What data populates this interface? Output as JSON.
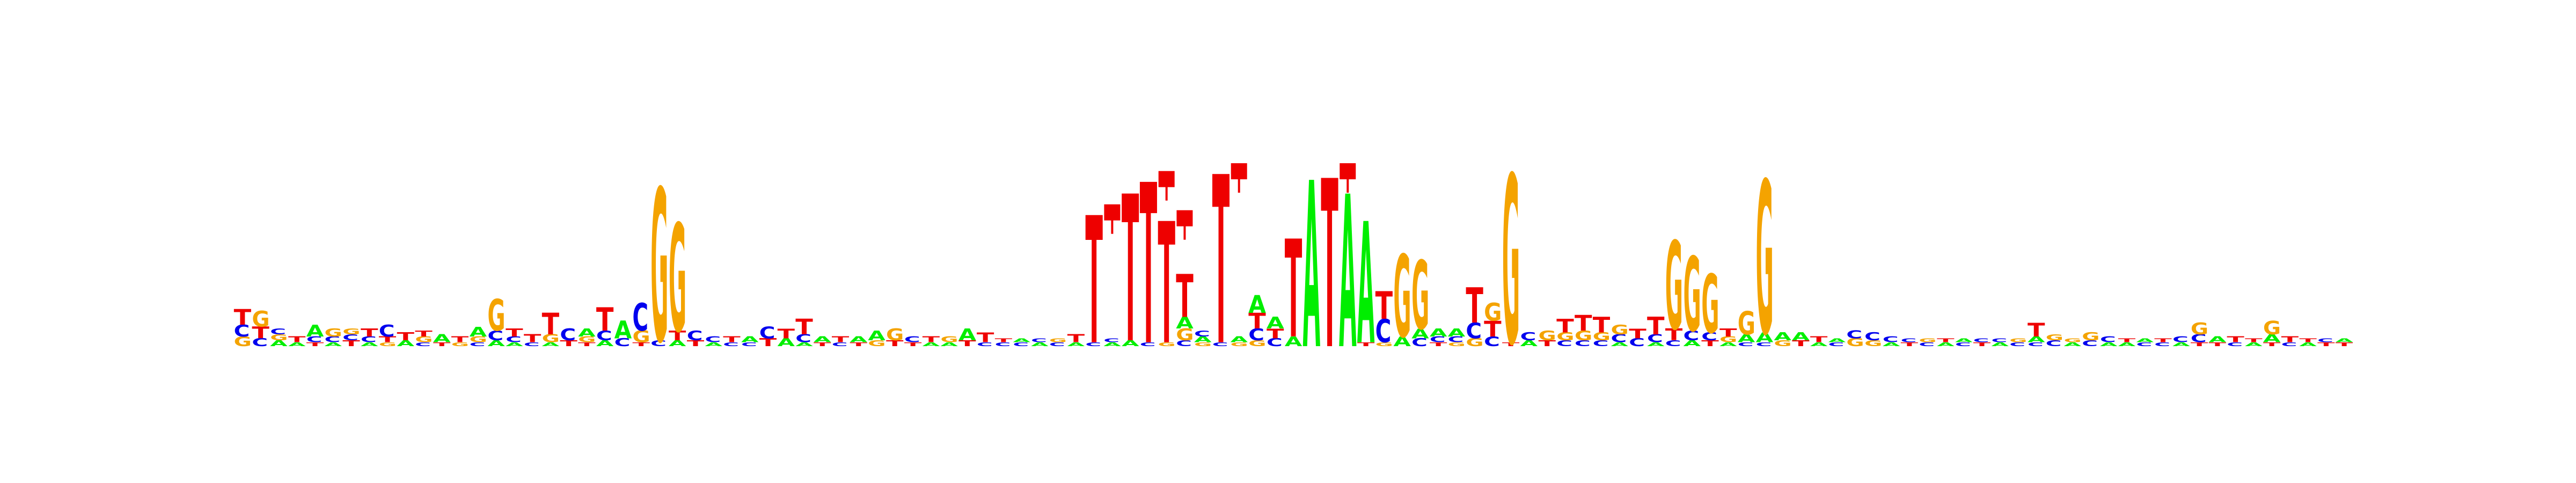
{
  "chart_data": {
    "type": "sequence-logo",
    "alphabet": [
      "A",
      "C",
      "G",
      "T"
    ],
    "colors": {
      "A": "#00ee00",
      "C": "#0000ee",
      "G": "#f4a300",
      "T": "#ee0000"
    },
    "positions": [
      {
        "T": 0.08,
        "C": 0.06,
        "G": 0.05
      },
      {
        "G": 0.08,
        "T": 0.06,
        "C": 0.04
      },
      {
        "A": 0.03,
        "G": 0.03,
        "C": 0.03
      },
      {
        "T": 0.03,
        "A": 0.02
      },
      {
        "A": 0.06,
        "C": 0.03,
        "T": 0.02
      },
      {
        "G": 0.04,
        "C": 0.03,
        "A": 0.02
      },
      {
        "T": 0.03,
        "C": 0.03,
        "G": 0.03
      },
      {
        "T": 0.04,
        "C": 0.03,
        "A": 0.02
      },
      {
        "C": 0.06,
        "T": 0.03,
        "G": 0.02
      },
      {
        "T": 0.04,
        "A": 0.03
      },
      {
        "G": 0.03,
        "T": 0.03,
        "C": 0.02
      },
      {
        "A": 0.04,
        "T": 0.02
      },
      {
        "T": 0.03,
        "G": 0.02
      },
      {
        "A": 0.05,
        "G": 0.03,
        "C": 0.02
      },
      {
        "G": 0.16,
        "C": 0.05,
        "A": 0.03
      },
      {
        "T": 0.04,
        "C": 0.03,
        "A": 0.02
      },
      {
        "T": 0.04,
        "C": 0.02
      },
      {
        "T": 0.11,
        "G": 0.04,
        "A": 0.02
      },
      {
        "C": 0.06,
        "T": 0.03
      },
      {
        "A": 0.04,
        "G": 0.03,
        "T": 0.02
      },
      {
        "T": 0.12,
        "C": 0.05,
        "A": 0.03
      },
      {
        "A": 0.09,
        "C": 0.04
      },
      {
        "C": 0.14,
        "G": 0.06,
        "T": 0.02
      },
      {
        "G": 0.78,
        "C": 0.03
      },
      {
        "G": 0.55,
        "T": 0.05,
        "A": 0.03
      },
      {
        "C": 0.05,
        "T": 0.03
      },
      {
        "C": 0.03,
        "A": 0.02
      },
      {
        "T": 0.03,
        "C": 0.02
      },
      {
        "A": 0.03,
        "C": 0.02
      },
      {
        "C": 0.06,
        "T": 0.04
      },
      {
        "T": 0.05,
        "A": 0.04
      },
      {
        "T": 0.08,
        "C": 0.04,
        "A": 0.02
      },
      {
        "A": 0.03,
        "T": 0.02
      },
      {
        "T": 0.03,
        "C": 0.02
      },
      {
        "A": 0.03,
        "T": 0.02
      },
      {
        "A": 0.05,
        "G": 0.03
      },
      {
        "G": 0.06,
        "T": 0.03
      },
      {
        "C": 0.03,
        "T": 0.02
      },
      {
        "T": 0.03,
        "A": 0.02
      },
      {
        "G": 0.03,
        "A": 0.02
      },
      {
        "A": 0.06,
        "T": 0.03
      },
      {
        "T": 0.05,
        "C": 0.02
      },
      {
        "C": 0.02,
        "T": 0.02
      },
      {
        "C": 0.02,
        "A": 0.02
      },
      {
        "A": 0.02,
        "C": 0.02
      },
      {
        "C": 0.02,
        "G": 0.02
      },
      {
        "T": 0.04,
        "A": 0.02
      },
      {
        "T": 0.65,
        "C": 0.02
      },
      {
        "A": 0.02,
        "C": 0.02
      },
      {
        "T": 0.75,
        "A": 0.03
      },
      {
        "T": 0.82,
        "C": 0.02
      },
      {
        "T": 0.62,
        "G": 0.02
      },
      {
        "T": 0.22,
        "G": 0.06,
        "A": 0.06,
        "C": 0.03
      },
      {
        "A": 0.03,
        "C": 0.03,
        "G": 0.02
      },
      {
        "T": 0.86,
        "C": 0.02
      },
      {
        "G": 0.02,
        "A": 0.03
      },
      {
        "A": 0.09,
        "T": 0.08,
        "C": 0.06,
        "G": 0.03
      },
      {
        "A": 0.06,
        "T": 0.05,
        "C": 0.04
      },
      {
        "T": 0.5,
        "A": 0.05
      },
      {
        "A": 0.85
      },
      {
        "T": 0.86
      },
      {
        "A": 0.78
      },
      {
        "A": 0.62,
        "T": 0.02
      },
      {
        "C": 0.12,
        "T": 0.14,
        "G": 0.02
      },
      {
        "G": 0.42,
        "A": 0.05
      },
      {
        "G": 0.35,
        "A": 0.05,
        "C": 0.04
      },
      {
        "T": 0.02,
        "A": 0.04,
        "C": 0.03
      },
      {
        "A": 0.04,
        "C": 0.03,
        "G": 0.02
      },
      {
        "T": 0.18,
        "C": 0.08,
        "G": 0.04
      },
      {
        "G": 0.09,
        "T": 0.08,
        "C": 0.05
      },
      {
        "G": 0.86,
        "T": 0.02
      },
      {
        "C": 0.04,
        "A": 0.03
      },
      {
        "G": 0.05,
        "T": 0.03
      },
      {
        "T": 0.07,
        "G": 0.04,
        "C": 0.03
      },
      {
        "T": 0.08,
        "G": 0.05,
        "C": 0.03
      },
      {
        "T": 0.08,
        "G": 0.04,
        "C": 0.03
      },
      {
        "G": 0.05,
        "C": 0.04,
        "A": 0.02
      },
      {
        "T": 0.05,
        "C": 0.04
      },
      {
        "T": 0.09,
        "C": 0.04,
        "A": 0.02
      },
      {
        "G": 0.45,
        "T": 0.06,
        "C": 0.03
      },
      {
        "G": 0.38,
        "C": 0.05,
        "A": 0.03
      },
      {
        "G": 0.3,
        "C": 0.04,
        "T": 0.03
      },
      {
        "T": 0.04,
        "G": 0.03,
        "A": 0.02
      },
      {
        "G": 0.12,
        "A": 0.04,
        "C": 0.02
      },
      {
        "G": 0.78,
        "A": 0.05,
        "C": 0.02
      },
      {
        "A": 0.04,
        "G": 0.03
      },
      {
        "A": 0.04,
        "T": 0.03
      },
      {
        "T": 0.03,
        "A": 0.02
      },
      {
        "C": 0.02,
        "A": 0.02
      },
      {
        "G": 0.04,
        "C": 0.04
      },
      {
        "C": 0.04,
        "G": 0.03
      },
      {
        "C": 0.03,
        "A": 0.02
      },
      {
        "T": 0.02,
        "C": 0.02
      },
      {
        "C": 0.02,
        "G": 0.02
      },
      {
        "A": 0.02,
        "T": 0.02
      },
      {
        "C": 0.02,
        "A": 0.02
      },
      {
        "T": 0.02,
        "C": 0.02
      },
      {
        "A": 0.02,
        "C": 0.02
      },
      {
        "C": 0.02,
        "G": 0.02
      },
      {
        "T": 0.07,
        "A": 0.03,
        "C": 0.02
      },
      {
        "C": 0.03,
        "G": 0.03
      },
      {
        "A": 0.02,
        "G": 0.02
      },
      {
        "G": 0.04,
        "C": 0.03
      },
      {
        "C": 0.03,
        "A": 0.02
      },
      {
        "A": 0.02,
        "T": 0.02
      },
      {
        "C": 0.02,
        "A": 0.02
      },
      {
        "C": 0.02,
        "T": 0.02
      },
      {
        "C": 0.03,
        "A": 0.02
      },
      {
        "G": 0.06,
        "C": 0.04,
        "T": 0.02
      },
      {
        "A": 0.03,
        "T": 0.02
      },
      {
        "T": 0.03,
        "C": 0.02
      },
      {
        "A": 0.02,
        "T": 0.02
      },
      {
        "G": 0.07,
        "A": 0.04,
        "T": 0.02
      },
      {
        "T": 0.03,
        "C": 0.02
      },
      {
        "A": 0.02,
        "T": 0.02
      },
      {
        "T": 0.02,
        "C": 0.02
      },
      {
        "T": 0.02,
        "A": 0.02
      }
    ],
    "error_bars": [
      {
        "position": 48,
        "height": 0.65
      },
      {
        "position": 50,
        "height": 0.75
      },
      {
        "position": 51,
        "height": 0.82
      },
      {
        "position": 52,
        "height": 0.62
      },
      {
        "position": 55,
        "height": 0.86
      },
      {
        "position": 61,
        "height": 0.86
      }
    ],
    "title": "",
    "xlabel": "",
    "ylabel": ""
  }
}
